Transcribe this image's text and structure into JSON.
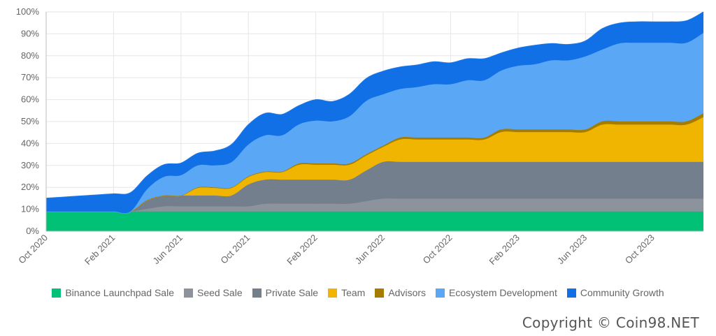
{
  "chart_data": {
    "type": "area",
    "stacked": true,
    "y_unit": "percent",
    "ylim": [
      0,
      100
    ],
    "y_ticks": [
      "0%",
      "10%",
      "20%",
      "30%",
      "40%",
      "50%",
      "60%",
      "70%",
      "80%",
      "90%",
      "100%"
    ],
    "x_tick_labels": [
      "Oct 2020",
      "Feb 2021",
      "Jun 2021",
      "Oct 2021",
      "Feb 2022",
      "Jun 2022",
      "Oct 2022",
      "Feb 2023",
      "Jun 2023",
      "Oct 2023"
    ],
    "grid": true,
    "legend_position": "bottom",
    "x": [
      "2020-10",
      "2020-11",
      "2020-12",
      "2021-01",
      "2021-02",
      "2021-03",
      "2021-04",
      "2021-05",
      "2021-06",
      "2021-07",
      "2021-08",
      "2021-09",
      "2021-10",
      "2021-11",
      "2021-12",
      "2022-01",
      "2022-02",
      "2022-03",
      "2022-04",
      "2022-05",
      "2022-06",
      "2022-07",
      "2022-08",
      "2022-09",
      "2022-10",
      "2022-11",
      "2022-12",
      "2023-01",
      "2023-02",
      "2023-03",
      "2023-04",
      "2023-05",
      "2023-06",
      "2023-07",
      "2023-08",
      "2023-09",
      "2023-10",
      "2023-11",
      "2023-12",
      "2024-01"
    ],
    "series": [
      {
        "name": "Binance Launchpad Sale",
        "color": "#00c176",
        "values": [
          9,
          9,
          9,
          9,
          9,
          9,
          9,
          9,
          9,
          9,
          9,
          9,
          9,
          9,
          9,
          9,
          9,
          9,
          9,
          9,
          9,
          9,
          9,
          9,
          9,
          9,
          9,
          9,
          9,
          9,
          9,
          9,
          9,
          9,
          9,
          9,
          9,
          9,
          9,
          9
        ]
      },
      {
        "name": "Seed Sale",
        "color": "#8c939c",
        "values": [
          0,
          0,
          0,
          0,
          0,
          0,
          1.2,
          2.3,
          2.3,
          2.3,
          2.3,
          2.3,
          2.3,
          3.5,
          3.5,
          3.5,
          3.5,
          3.5,
          3.5,
          4.7,
          5.8,
          5.8,
          5.8,
          5.8,
          5.8,
          5.8,
          5.8,
          5.8,
          5.8,
          5.8,
          5.8,
          5.8,
          5.8,
          5.8,
          5.8,
          5.8,
          5.8,
          5.8,
          5.8,
          5.8
        ]
      },
      {
        "name": "Private Sale",
        "color": "#747f8e",
        "values": [
          0,
          0,
          0,
          0,
          0,
          0,
          4,
          5,
          5,
          5,
          5,
          5,
          10,
          11,
          11,
          11,
          11,
          11,
          11,
          14,
          16.8,
          16.8,
          16.8,
          16.8,
          16.8,
          16.8,
          16.8,
          16.8,
          16.8,
          16.8,
          16.8,
          16.8,
          16.8,
          16.8,
          16.8,
          16.8,
          16.8,
          16.8,
          16.8,
          16.8
        ]
      },
      {
        "name": "Team",
        "color": "#f0b500",
        "values": [
          0,
          0,
          0,
          0,
          0,
          0,
          0,
          0,
          0,
          3.4,
          3.4,
          3.4,
          3.4,
          3.4,
          3.4,
          6.8,
          6.8,
          6.8,
          6.8,
          6.8,
          6.8,
          10.2,
          10.2,
          10.2,
          10.2,
          10.2,
          10.2,
          13.6,
          13.6,
          13.6,
          13.6,
          13.6,
          13.6,
          17,
          17,
          17,
          17,
          17,
          17,
          20.4
        ]
      },
      {
        "name": "Advisors",
        "color": "#a67c00",
        "values": [
          0,
          0,
          0,
          0,
          0,
          0,
          0,
          0,
          0,
          0.3,
          0.3,
          0.3,
          0.3,
          0.3,
          0.3,
          0.6,
          0.6,
          0.6,
          0.6,
          0.6,
          0.6,
          0.9,
          0.9,
          0.9,
          0.9,
          0.9,
          0.9,
          1.2,
          1.2,
          1.2,
          1.2,
          1.2,
          1.2,
          1.5,
          1.5,
          1.5,
          1.5,
          1.5,
          1.5,
          1.8
        ]
      },
      {
        "name": "Ecosystem Development",
        "color": "#5aa7f5",
        "values": [
          0,
          0,
          0,
          0,
          0,
          0,
          5,
          8.5,
          9.2,
          10,
          10,
          11.5,
          14.5,
          16.5,
          16.5,
          17.8,
          19.5,
          19.2,
          21.5,
          24.3,
          23.4,
          22.1,
          23,
          24.3,
          24.3,
          26.1,
          26.1,
          26.8,
          29,
          29.7,
          31.5,
          31.5,
          33.3,
          32.7,
          35.5,
          35.8,
          35.8,
          35.8,
          35.8,
          36.6
        ]
      },
      {
        "name": "Community Growth",
        "color": "#1170e6",
        "values": [
          6,
          6.5,
          7,
          7.5,
          8,
          8.5,
          6,
          5.5,
          5.5,
          5.5,
          6.5,
          8,
          9,
          10,
          9.5,
          8.5,
          9.5,
          9,
          10,
          10.2,
          10.5,
          10,
          10,
          10.2,
          9.7,
          9.8,
          9.8,
          8,
          8,
          8.6,
          7.6,
          7.2,
          7,
          9.5,
          9.2,
          9.5,
          9.5,
          9.5,
          10,
          9.5
        ]
      }
    ]
  },
  "footer": {
    "copyright": "Copyright © Coin98.NET"
  }
}
